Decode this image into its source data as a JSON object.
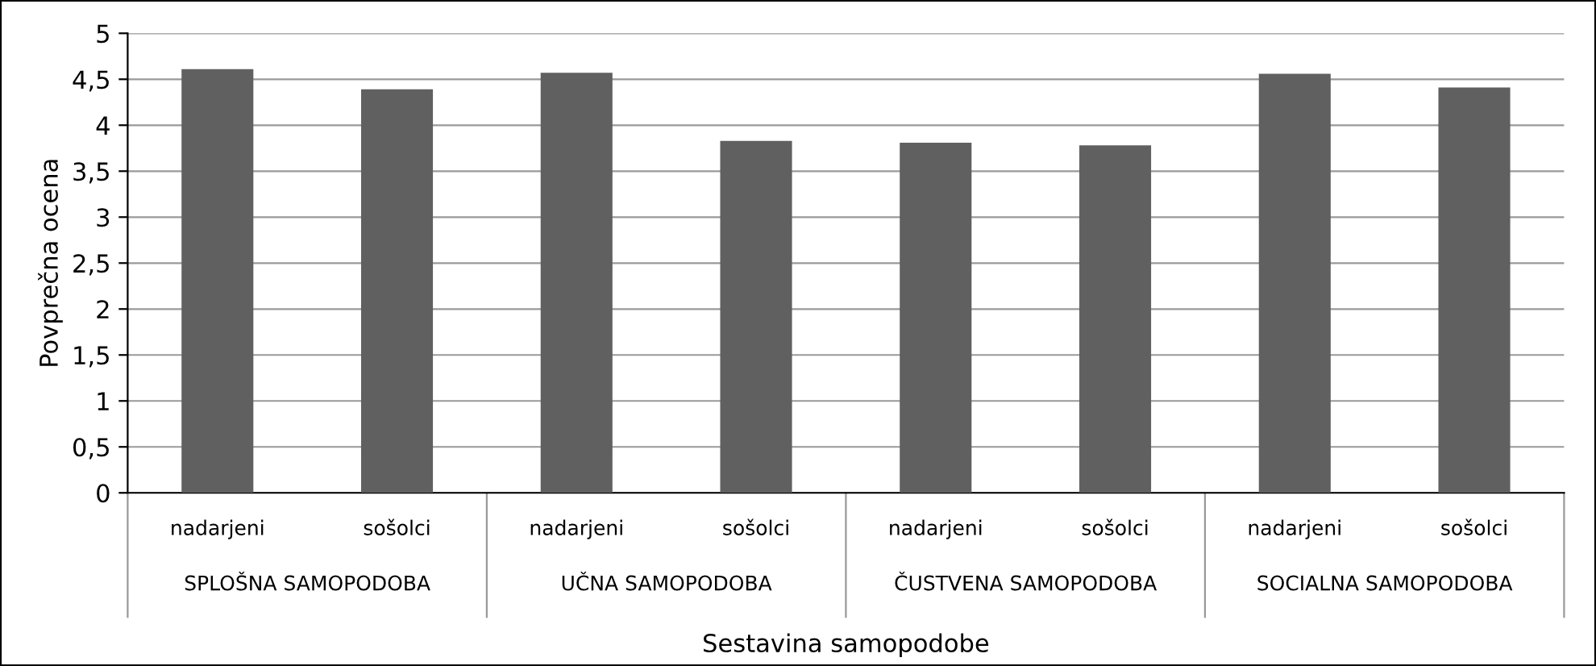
{
  "chart_data": {
    "type": "bar",
    "xlabel": "Sestavina samopodobe",
    "ylabel": "Povprečna ocena",
    "categories": [
      "nadarjeni",
      "sošolci",
      "nadarjeni",
      "sošolci",
      "nadarjeni",
      "sošolci",
      "nadarjeni",
      "sošolci"
    ],
    "values": [
      4.61,
      4.39,
      4.57,
      3.83,
      3.81,
      3.78,
      4.56,
      4.41
    ],
    "color": "#606060",
    "ylim": [
      0,
      5
    ],
    "yticks": [
      0,
      {
        "value": 0.5,
        "label": "0,5"
      },
      1,
      {
        "value": 1.5,
        "label": "1,5"
      },
      2,
      {
        "value": 2.5,
        "label": "2,5"
      },
      3,
      {
        "value": 3.5,
        "label": "3,5"
      },
      4,
      {
        "value": 4.5,
        "label": "4,5"
      },
      5
    ],
    "grid": "y",
    "annotations": [
      "SPLOŠNA SAMOPODOBA",
      "UČNA SAMOPODOBA",
      "ČUSTVENA SAMOPODOBA",
      "SOCIALNA SAMOPODOBA"
    ]
  }
}
